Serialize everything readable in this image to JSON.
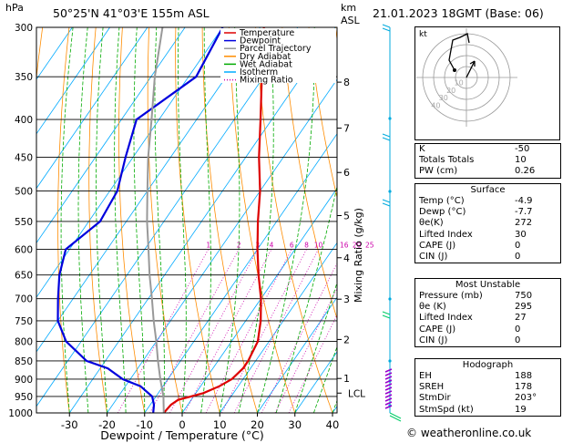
{
  "header": {
    "hpa_label": "hPa",
    "location": "50°25'N  41°03'E  155m  ASL",
    "km_label": "km",
    "asl_label": "ASL",
    "datetime": "21.01.2023  18GMT  (Base: 06)"
  },
  "chart_data": {
    "type": "line",
    "title": "",
    "xlabel": "Dewpoint / Temperature (°C)",
    "ylabel_left": "hPa",
    "ylabel_right": "Mixing Ratio (g/kg)",
    "pressure_ticks": [
      300,
      350,
      400,
      450,
      500,
      550,
      600,
      650,
      700,
      750,
      800,
      850,
      900,
      950,
      1000
    ],
    "temp_ticks": [
      -30,
      -20,
      -10,
      0,
      10,
      20,
      30,
      40
    ],
    "xlim": [
      -40,
      40
    ],
    "ylim": [
      1000,
      300
    ],
    "y_scale": "log",
    "km_ticks": [
      {
        "km": "1",
        "p": 898
      },
      {
        "km": "2",
        "p": 795
      },
      {
        "km": "3",
        "p": 701
      },
      {
        "km": "4",
        "p": 616
      },
      {
        "km": "5",
        "p": 540
      },
      {
        "km": "6",
        "p": 472
      },
      {
        "km": "7",
        "p": 411
      },
      {
        "km": "8",
        "p": 356
      }
    ],
    "lcl_label": "LCL",
    "lcl_p": 940,
    "mixing_ratio_labels": [
      "1",
      "2",
      "3",
      "4",
      "6",
      "8",
      "10",
      "16",
      "20",
      "25"
    ],
    "legend": [
      "Temperature",
      "Dewpoint",
      "Parcel Trajectory",
      "Dry Adiabat",
      "Wet Adiabat",
      "Isotherm",
      "Mixing Ratio"
    ],
    "series": [
      {
        "name": "Temperature",
        "color": "#dd0000",
        "points": [
          [
            1000,
            -4.9
          ],
          [
            975,
            -4.5
          ],
          [
            960,
            -3.5
          ],
          [
            940,
            2
          ],
          [
            920,
            5
          ],
          [
            900,
            7
          ],
          [
            870,
            8
          ],
          [
            850,
            8
          ],
          [
            800,
            7
          ],
          [
            750,
            4
          ],
          [
            700,
            0
          ],
          [
            650,
            -5
          ],
          [
            600,
            -10
          ],
          [
            550,
            -15
          ],
          [
            500,
            -20
          ],
          [
            450,
            -26.5
          ],
          [
            400,
            -33
          ],
          [
            350,
            -40.5
          ],
          [
            340,
            -42
          ],
          [
            300,
            -49
          ]
        ]
      },
      {
        "name": "Dewpoint",
        "color": "#0000dd",
        "points": [
          [
            1000,
            -7.7
          ],
          [
            975,
            -9
          ],
          [
            950,
            -11
          ],
          [
            920,
            -16
          ],
          [
            900,
            -22
          ],
          [
            870,
            -28
          ],
          [
            850,
            -35
          ],
          [
            800,
            -44
          ],
          [
            750,
            -50
          ],
          [
            700,
            -54
          ],
          [
            650,
            -58
          ],
          [
            600,
            -61
          ],
          [
            550,
            -57
          ],
          [
            500,
            -58
          ],
          [
            450,
            -62
          ],
          [
            400,
            -66
          ],
          [
            350,
            -58
          ],
          [
            300,
            -60
          ]
        ]
      },
      {
        "name": "Parcel Trajectory",
        "color": "#999999",
        "points": [
          [
            1000,
            -4.9
          ],
          [
            950,
            -8
          ],
          [
            900,
            -12
          ],
          [
            850,
            -16
          ],
          [
            800,
            -20
          ],
          [
            750,
            -24.5
          ],
          [
            700,
            -29
          ],
          [
            650,
            -34
          ],
          [
            600,
            -39
          ],
          [
            550,
            -44.5
          ],
          [
            500,
            -50
          ],
          [
            450,
            -56
          ],
          [
            400,
            -62
          ],
          [
            350,
            -69
          ],
          [
            300,
            -76
          ]
        ]
      }
    ]
  },
  "indices": {
    "rows": [
      {
        "label": "K",
        "value": "-50"
      },
      {
        "label": "Totals Totals",
        "value": "10"
      },
      {
        "label": "PW (cm)",
        "value": "0.26"
      }
    ]
  },
  "surface": {
    "title": "Surface",
    "rows": [
      {
        "label": "Temp (°C)",
        "value": "-4.9"
      },
      {
        "label": "Dewp (°C)",
        "value": "-7.7"
      },
      {
        "label": "θe(K)",
        "value": "272"
      },
      {
        "label": "Lifted Index",
        "value": "30"
      },
      {
        "label": "CAPE (J)",
        "value": "0"
      },
      {
        "label": "CIN (J)",
        "value": "0"
      }
    ]
  },
  "most_unstable": {
    "title": "Most Unstable",
    "rows": [
      {
        "label": "Pressure (mb)",
        "value": "750"
      },
      {
        "label": "θe (K)",
        "value": "295"
      },
      {
        "label": "Lifted Index",
        "value": "27"
      },
      {
        "label": "CAPE (J)",
        "value": "0"
      },
      {
        "label": "CIN (J)",
        "value": "0"
      }
    ]
  },
  "hodograph_table": {
    "title": "Hodograph",
    "rows": [
      {
        "label": "EH",
        "value": "188"
      },
      {
        "label": "SREH",
        "value": "178"
      },
      {
        "label": "StmDir",
        "value": "203°"
      },
      {
        "label": "StmSpd (kt)",
        "value": "19"
      }
    ]
  },
  "hodograph": {
    "kt_label": "kt",
    "ring_labels": [
      "10",
      "20",
      "30",
      "40"
    ]
  },
  "footer": "© weatheronline.co.uk",
  "colors": {
    "temperature": "#dd0000",
    "dewpoint": "#0000dd",
    "parcel": "#999999",
    "dry_adiabat": "#ff8c00",
    "wet_adiabat": "#00aa00",
    "isotherm": "#00aaff",
    "mixing_ratio": "#cc00aa",
    "wind": "#00aadd"
  }
}
